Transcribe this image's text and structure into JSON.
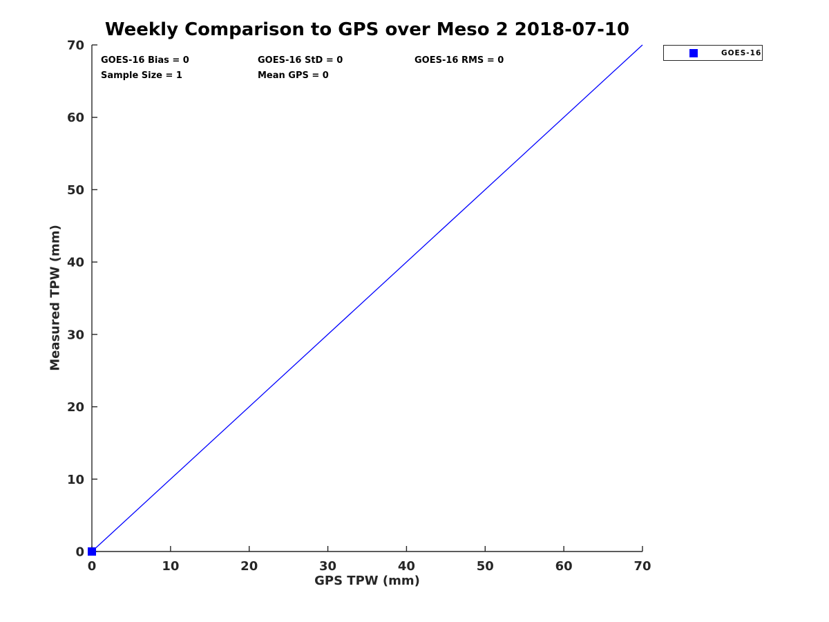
{
  "colors": {
    "background": "#ffffff",
    "axis": "#262626",
    "text": "#000000",
    "series": "#0000ff"
  },
  "chart_data": {
    "type": "scatter",
    "title": "Weekly Comparison to GPS over Meso 2 2018-07-10",
    "xlabel": "GPS TPW (mm)",
    "ylabel": "Measured TPW (mm)",
    "xlim": [
      0,
      70
    ],
    "ylim": [
      0,
      70
    ],
    "x_ticks": [
      0,
      10,
      20,
      30,
      40,
      50,
      60,
      70
    ],
    "y_ticks": [
      0,
      10,
      20,
      30,
      40,
      50,
      60,
      70
    ],
    "grid": false,
    "series": [
      {
        "name": "GOES-16",
        "type": "scatter",
        "marker": "square",
        "color": "#0000ff",
        "x": [
          0
        ],
        "y": [
          0
        ]
      }
    ],
    "reference_line": {
      "name": "identity-line",
      "x": [
        0,
        70
      ],
      "y": [
        0,
        70
      ],
      "color": "#0000ff"
    },
    "legend": {
      "position": "outside-top-right",
      "entries": [
        {
          "label": "GOES-16",
          "marker": "square",
          "color": "#0000ff"
        }
      ]
    },
    "annotations": [
      {
        "text": "GOES-16 Bias = 0",
        "row": 0,
        "col": 0
      },
      {
        "text": "GOES-16 StD = 0",
        "row": 0,
        "col": 1
      },
      {
        "text": "GOES-16 RMS = 0",
        "row": 0,
        "col": 2
      },
      {
        "text": "Sample Size = 1",
        "row": 1,
        "col": 0
      },
      {
        "text": "Mean GPS = 0",
        "row": 1,
        "col": 1
      }
    ]
  }
}
